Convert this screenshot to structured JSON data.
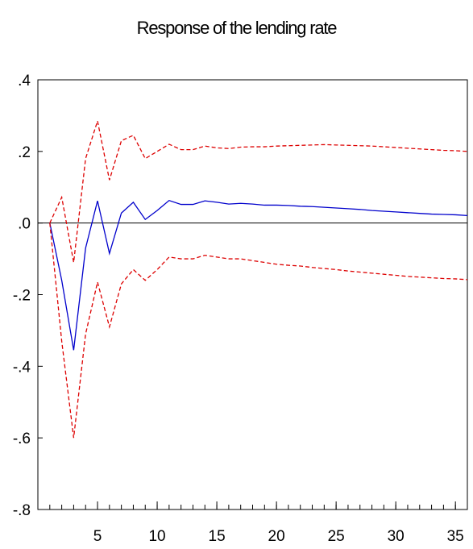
{
  "chart_data": {
    "type": "line",
    "title": "Response of the lending rate",
    "xlabel": "",
    "ylabel": "",
    "xlim": [
      1,
      36
    ],
    "ylim": [
      -0.8,
      0.4
    ],
    "x_ticks": [
      {
        "value": 5,
        "label": "5"
      },
      {
        "value": 10,
        "label": "10"
      },
      {
        "value": 15,
        "label": "15"
      },
      {
        "value": 20,
        "label": "20"
      },
      {
        "value": 25,
        "label": "25"
      },
      {
        "value": 30,
        "label": "30"
      },
      {
        "value": 35,
        "label": "35"
      }
    ],
    "y_ticks": [
      {
        "value": 0.4,
        "label": ".4"
      },
      {
        "value": 0.2,
        "label": ".2"
      },
      {
        "value": 0.0,
        "label": ".0"
      },
      {
        "value": -0.2,
        "label": "-.2"
      },
      {
        "value": -0.4,
        "label": "-.4"
      },
      {
        "value": -0.6,
        "label": "-.6"
      },
      {
        "value": -0.8,
        "label": "-.8"
      }
    ],
    "grid": false,
    "zero_line": true,
    "x": [
      1,
      2,
      3,
      4,
      5,
      6,
      7,
      8,
      9,
      10,
      11,
      12,
      13,
      14,
      15,
      16,
      17,
      18,
      19,
      20,
      21,
      22,
      23,
      24,
      25,
      26,
      27,
      28,
      29,
      30,
      31,
      32,
      33,
      34,
      35,
      36
    ],
    "series": [
      {
        "color": "#0000cc",
        "dash": "solid",
        "values": [
          0.0,
          -0.16,
          -0.355,
          -0.07,
          0.062,
          -0.085,
          0.028,
          0.058,
          0.01,
          0.035,
          0.063,
          0.052,
          0.052,
          0.062,
          0.058,
          0.053,
          0.055,
          0.053,
          0.05,
          0.05,
          0.049,
          0.047,
          0.046,
          0.044,
          0.042,
          0.04,
          0.038,
          0.035,
          0.033,
          0.031,
          0.029,
          0.027,
          0.025,
          0.024,
          0.023,
          0.021
        ]
      },
      {
        "color": "#dd0000",
        "dash": "dashed",
        "values": [
          0.0,
          0.072,
          -0.11,
          0.18,
          0.285,
          0.12,
          0.23,
          0.245,
          0.18,
          0.2,
          0.22,
          0.205,
          0.205,
          0.215,
          0.21,
          0.208,
          0.212,
          0.213,
          0.213,
          0.215,
          0.216,
          0.217,
          0.218,
          0.219,
          0.218,
          0.217,
          0.216,
          0.215,
          0.213,
          0.211,
          0.209,
          0.207,
          0.205,
          0.203,
          0.202,
          0.2
        ]
      },
      {
        "color": "#dd0000",
        "dash": "dashed",
        "values": [
          0.0,
          -0.33,
          -0.6,
          -0.31,
          -0.165,
          -0.29,
          -0.17,
          -0.13,
          -0.16,
          -0.13,
          -0.095,
          -0.1,
          -0.1,
          -0.09,
          -0.095,
          -0.1,
          -0.1,
          -0.105,
          -0.11,
          -0.115,
          -0.118,
          -0.12,
          -0.124,
          -0.127,
          -0.13,
          -0.134,
          -0.137,
          -0.14,
          -0.143,
          -0.146,
          -0.149,
          -0.151,
          -0.153,
          -0.155,
          -0.156,
          -0.158
        ]
      }
    ]
  }
}
